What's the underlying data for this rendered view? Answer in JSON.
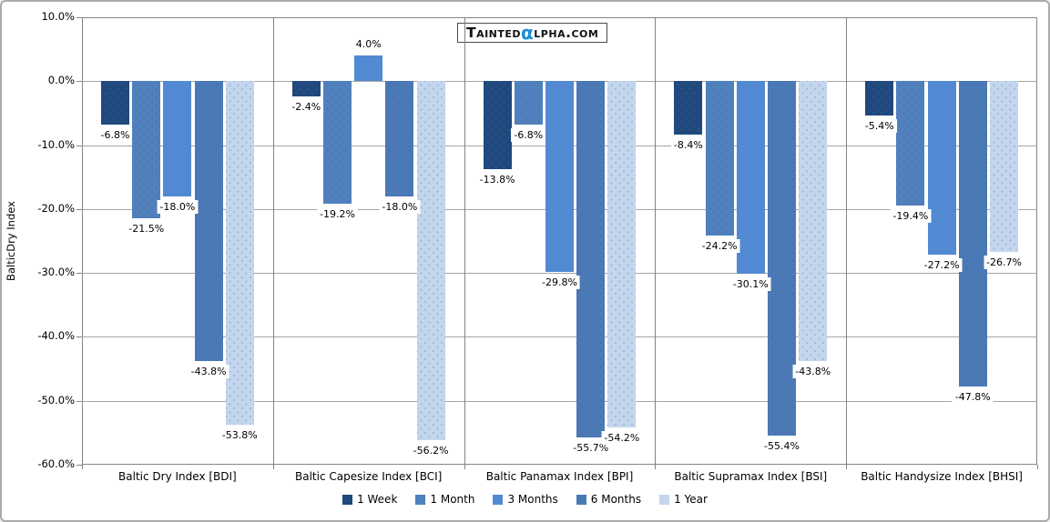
{
  "logo": {
    "prefix": "Tainted",
    "alpha": "α",
    "suffix": "lpha.com",
    "alpha_color": "#1b8fd6"
  },
  "chart_data": {
    "type": "bar",
    "title": "",
    "xlabel": "",
    "ylabel": "BalticDry Index",
    "ylim": [
      -60,
      10
    ],
    "ytick_step": 10,
    "ytick_labels": [
      "10.0%",
      "0.0%",
      "-10.0%",
      "-20.0%",
      "-30.0%",
      "-40.0%",
      "-50.0%",
      "-60.0%"
    ],
    "grid": true,
    "legend_position": "bottom",
    "value_label_suffix": "%",
    "categories": [
      "Baltic Dry Index [BDI]",
      "Baltic Capesize Index [BCI]",
      "Baltic Panamax Index [BPI]",
      "Baltic Supramax Index [BSI]",
      "Baltic Handysize Index [BHSI]"
    ],
    "series": [
      {
        "name": "1 Week",
        "color": "#1F497D",
        "pattern": "dots-dark",
        "values": [
          -6.8,
          -2.4,
          -13.8,
          -8.4,
          -5.4
        ]
      },
      {
        "name": "1 Month",
        "color": "#4F81BD",
        "pattern": "dots",
        "values": [
          -21.5,
          -19.2,
          -6.8,
          -24.2,
          -19.4
        ]
      },
      {
        "name": "3 Months",
        "color": "#5289D3",
        "pattern": "none",
        "values": [
          -18.0,
          4.0,
          -29.8,
          -30.1,
          -27.2
        ]
      },
      {
        "name": "6 Months",
        "color": "#4A7AB5",
        "pattern": "dots",
        "values": [
          -43.8,
          -18.0,
          -55.7,
          -55.4,
          -47.8
        ]
      },
      {
        "name": "1 Year",
        "color": "#C4D6ED",
        "pattern": "dots-light",
        "values": [
          -53.8,
          -56.2,
          -54.2,
          -43.8,
          -26.7
        ]
      }
    ]
  }
}
